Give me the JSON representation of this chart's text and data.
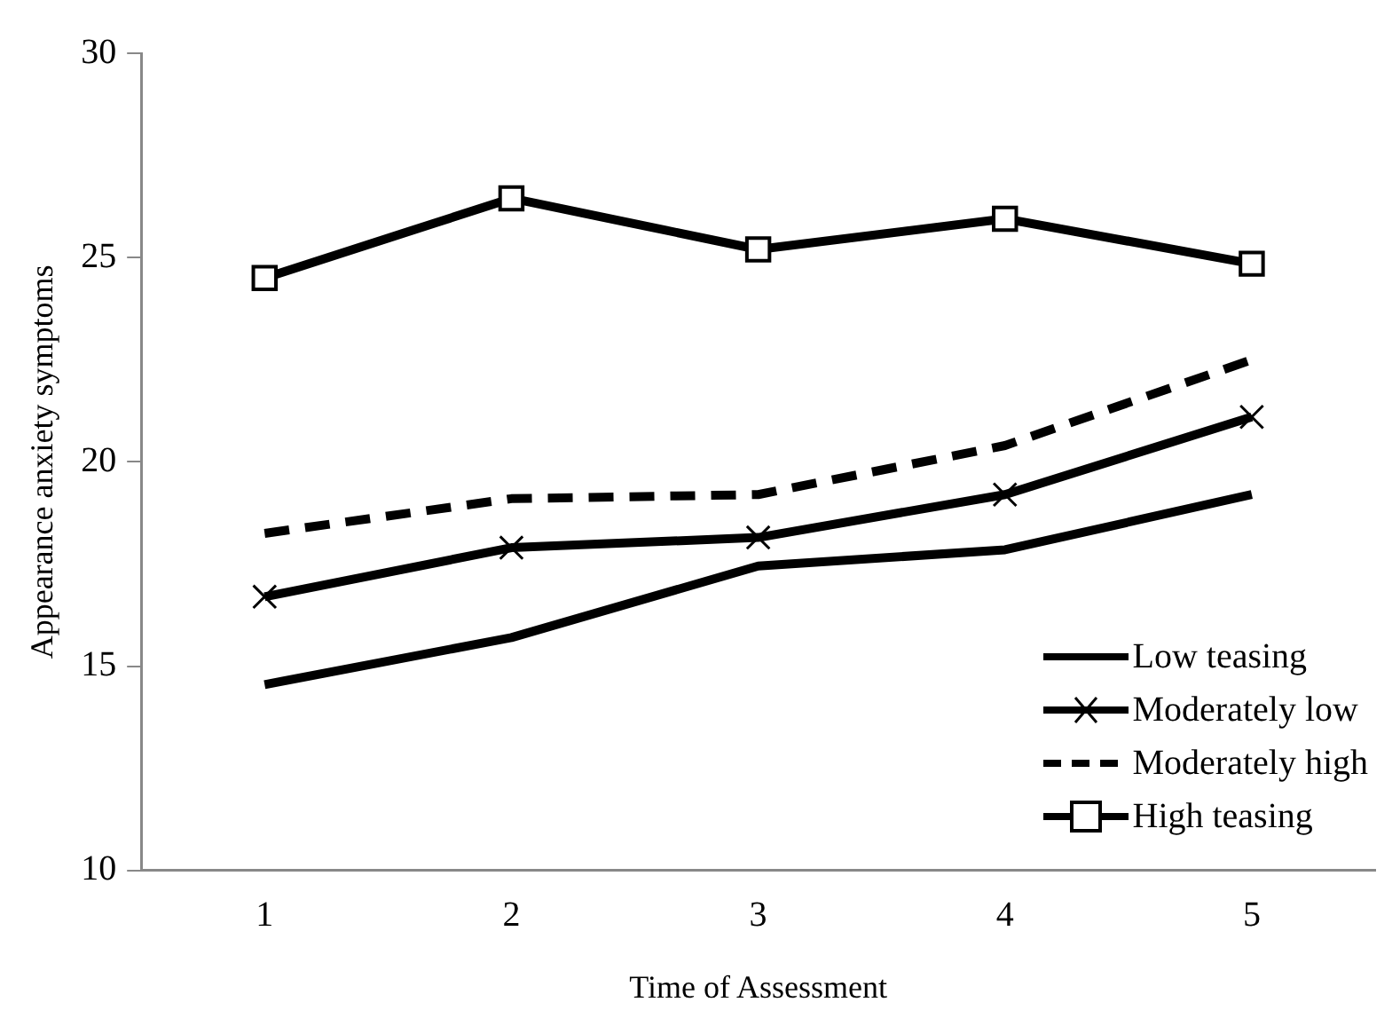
{
  "chart_data": {
    "type": "line",
    "xlabel": "Time of Assessment",
    "ylabel": "Appearance anxiety symptoms",
    "categories": [
      "1",
      "2",
      "3",
      "4",
      "5"
    ],
    "series": [
      {
        "name": "Low teasing",
        "color": "#000000",
        "marker": "none",
        "line_style": "solid",
        "values": [
          14.55,
          15.7,
          17.45,
          17.85,
          19.2
        ]
      },
      {
        "name": "Moderately low",
        "color": "#000000",
        "marker": "cross",
        "line_style": "solid",
        "values": [
          16.7,
          17.9,
          18.15,
          19.2,
          21.1
        ]
      },
      {
        "name": "Moderately high",
        "color": "#000000",
        "marker": "none",
        "line_style": "dashed",
        "values": [
          18.25,
          19.1,
          19.2,
          20.4,
          22.5
        ]
      },
      {
        "name": "High teasing",
        "color": "#000000",
        "marker": "square",
        "line_style": "solid",
        "values": [
          24.5,
          26.45,
          25.2,
          25.95,
          24.85
        ]
      }
    ],
    "ylim": [
      10,
      30
    ],
    "yticks": [
      10,
      15,
      20,
      25,
      30
    ],
    "grid": false,
    "legend": "bottom right"
  }
}
